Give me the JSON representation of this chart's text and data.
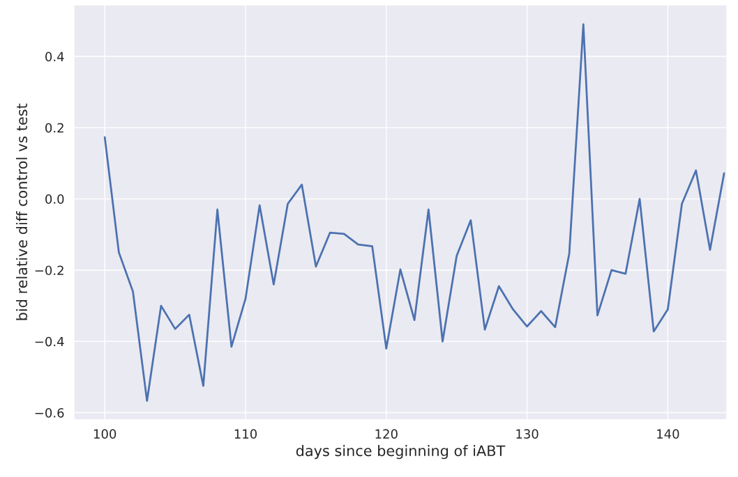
{
  "chart_data": {
    "type": "line",
    "xlabel": "days since beginning of iABT",
    "ylabel": "bid relative diff control vs test",
    "x": [
      100,
      101,
      102,
      103,
      104,
      105,
      106,
      107,
      108,
      109,
      110,
      111,
      112,
      113,
      114,
      115,
      116,
      117,
      118,
      119,
      120,
      121,
      122,
      123,
      124,
      125,
      126,
      127,
      128,
      129,
      130,
      131,
      132,
      133,
      134,
      135,
      136,
      137,
      138,
      139,
      140,
      141,
      142,
      143,
      144
    ],
    "series": [
      {
        "color": "#4c72b0",
        "values": [
          0.173,
          -0.15,
          -0.26,
          -0.567,
          -0.3,
          -0.365,
          -0.325,
          -0.525,
          -0.03,
          -0.415,
          -0.28,
          -0.018,
          -0.24,
          -0.014,
          0.04,
          -0.19,
          -0.095,
          -0.098,
          -0.128,
          -0.133,
          -0.42,
          -0.198,
          -0.34,
          -0.03,
          -0.4,
          -0.16,
          -0.06,
          -0.367,
          -0.245,
          -0.31,
          -0.358,
          -0.315,
          -0.36,
          -0.153,
          0.49,
          -0.327,
          -0.2,
          -0.21,
          0.0,
          -0.372,
          -0.31,
          -0.014,
          0.08,
          -0.143,
          0.072
        ]
      }
    ],
    "xlim": [
      97.8,
      144.2
    ],
    "ylim": [
      -0.62,
      0.545
    ],
    "xticks": [
      100,
      110,
      120,
      130,
      140
    ],
    "yticks": [
      {
        "value": 0.4,
        "label": "0.4"
      },
      {
        "value": 0.2,
        "label": "0.2"
      },
      {
        "value": 0.0,
        "label": "0.0"
      },
      {
        "value": -0.2,
        "label": "−0.2"
      },
      {
        "value": -0.4,
        "label": "−0.4"
      },
      {
        "value": -0.6,
        "label": "−0.6"
      }
    ],
    "grid": true
  }
}
